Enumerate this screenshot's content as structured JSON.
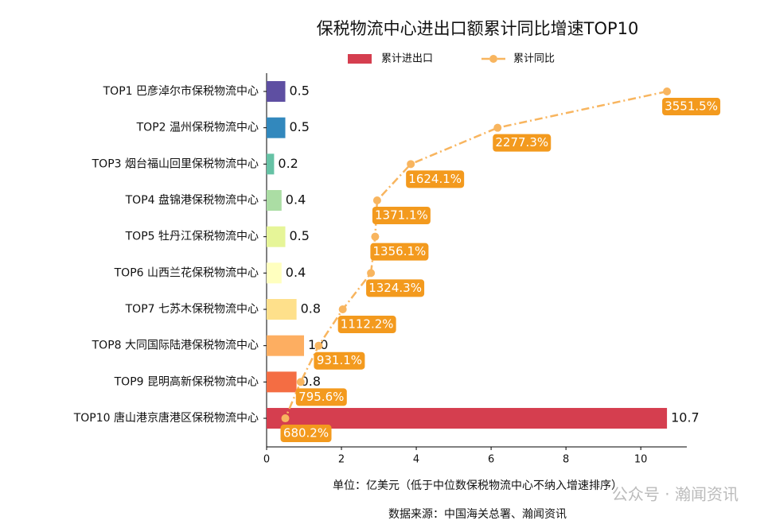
{
  "chart_data": {
    "type": "bar-line",
    "title": "保税物流中心进出口额累计同比增速TOP10",
    "categories": [
      "TOP1 巴彦淖尔市保税物流中心",
      "TOP2 温州保税物流中心",
      "TOP3 烟台福山回里保税物流中心",
      "TOP4 盘锦港保税物流中心",
      "TOP5 牡丹江保税物流中心",
      "TOP6 山西兰花保税物流中心",
      "TOP7 七苏木保税物流中心",
      "TOP8 大同国际陆港保税物流中心",
      "TOP9 昆明高新保税物流中心",
      "TOP10 唐山港京唐港区保税物流中心"
    ],
    "series": [
      {
        "name": "累计进出口",
        "color": "#d53e4f",
        "colors": [
          "#5e4fa2",
          "#3288bd",
          "#66c2a5",
          "#abdda4",
          "#e6f598",
          "#ffffbf",
          "#fee08b",
          "#fdae61",
          "#f46d43",
          "#d53e4f"
        ],
        "values": [
          0.5,
          0.5,
          0.2,
          0.4,
          0.5,
          0.4,
          0.8,
          1.0,
          0.8,
          10.7
        ],
        "value_labels": [
          "0.5",
          "0.5",
          "0.2",
          "0.4",
          "0.5",
          "0.4",
          "0.8",
          "1.0",
          "0.8",
          "10.7"
        ]
      },
      {
        "name": "累计同比",
        "color": "#f8b55f",
        "label_color": "#f39a1e",
        "axis": "x2",
        "values": [
          3551.5,
          2277.3,
          1624.1,
          1371.1,
          1356.1,
          1324.3,
          1112.2,
          931.1,
          795.6,
          680.2
        ],
        "value_labels": [
          "3551.5%",
          "2277.3%",
          "1624.1%",
          "1371.1%",
          "1356.1%",
          "1324.3%",
          "1112.2%",
          "931.1%",
          "795.6%",
          "680.2%"
        ]
      }
    ],
    "xlim": [
      0,
      11.23
    ],
    "xticks": [
      0,
      2,
      4,
      6,
      8,
      10
    ],
    "x2lim": [
      539.45,
      3700.7
    ],
    "xlabel": "单位：亿美元（低于中位数保税物流中心不纳入增速排序）",
    "source": "数据来源：中国海关总署、瀚闻资讯",
    "watermark": "公众号 · 瀚闻资讯"
  }
}
